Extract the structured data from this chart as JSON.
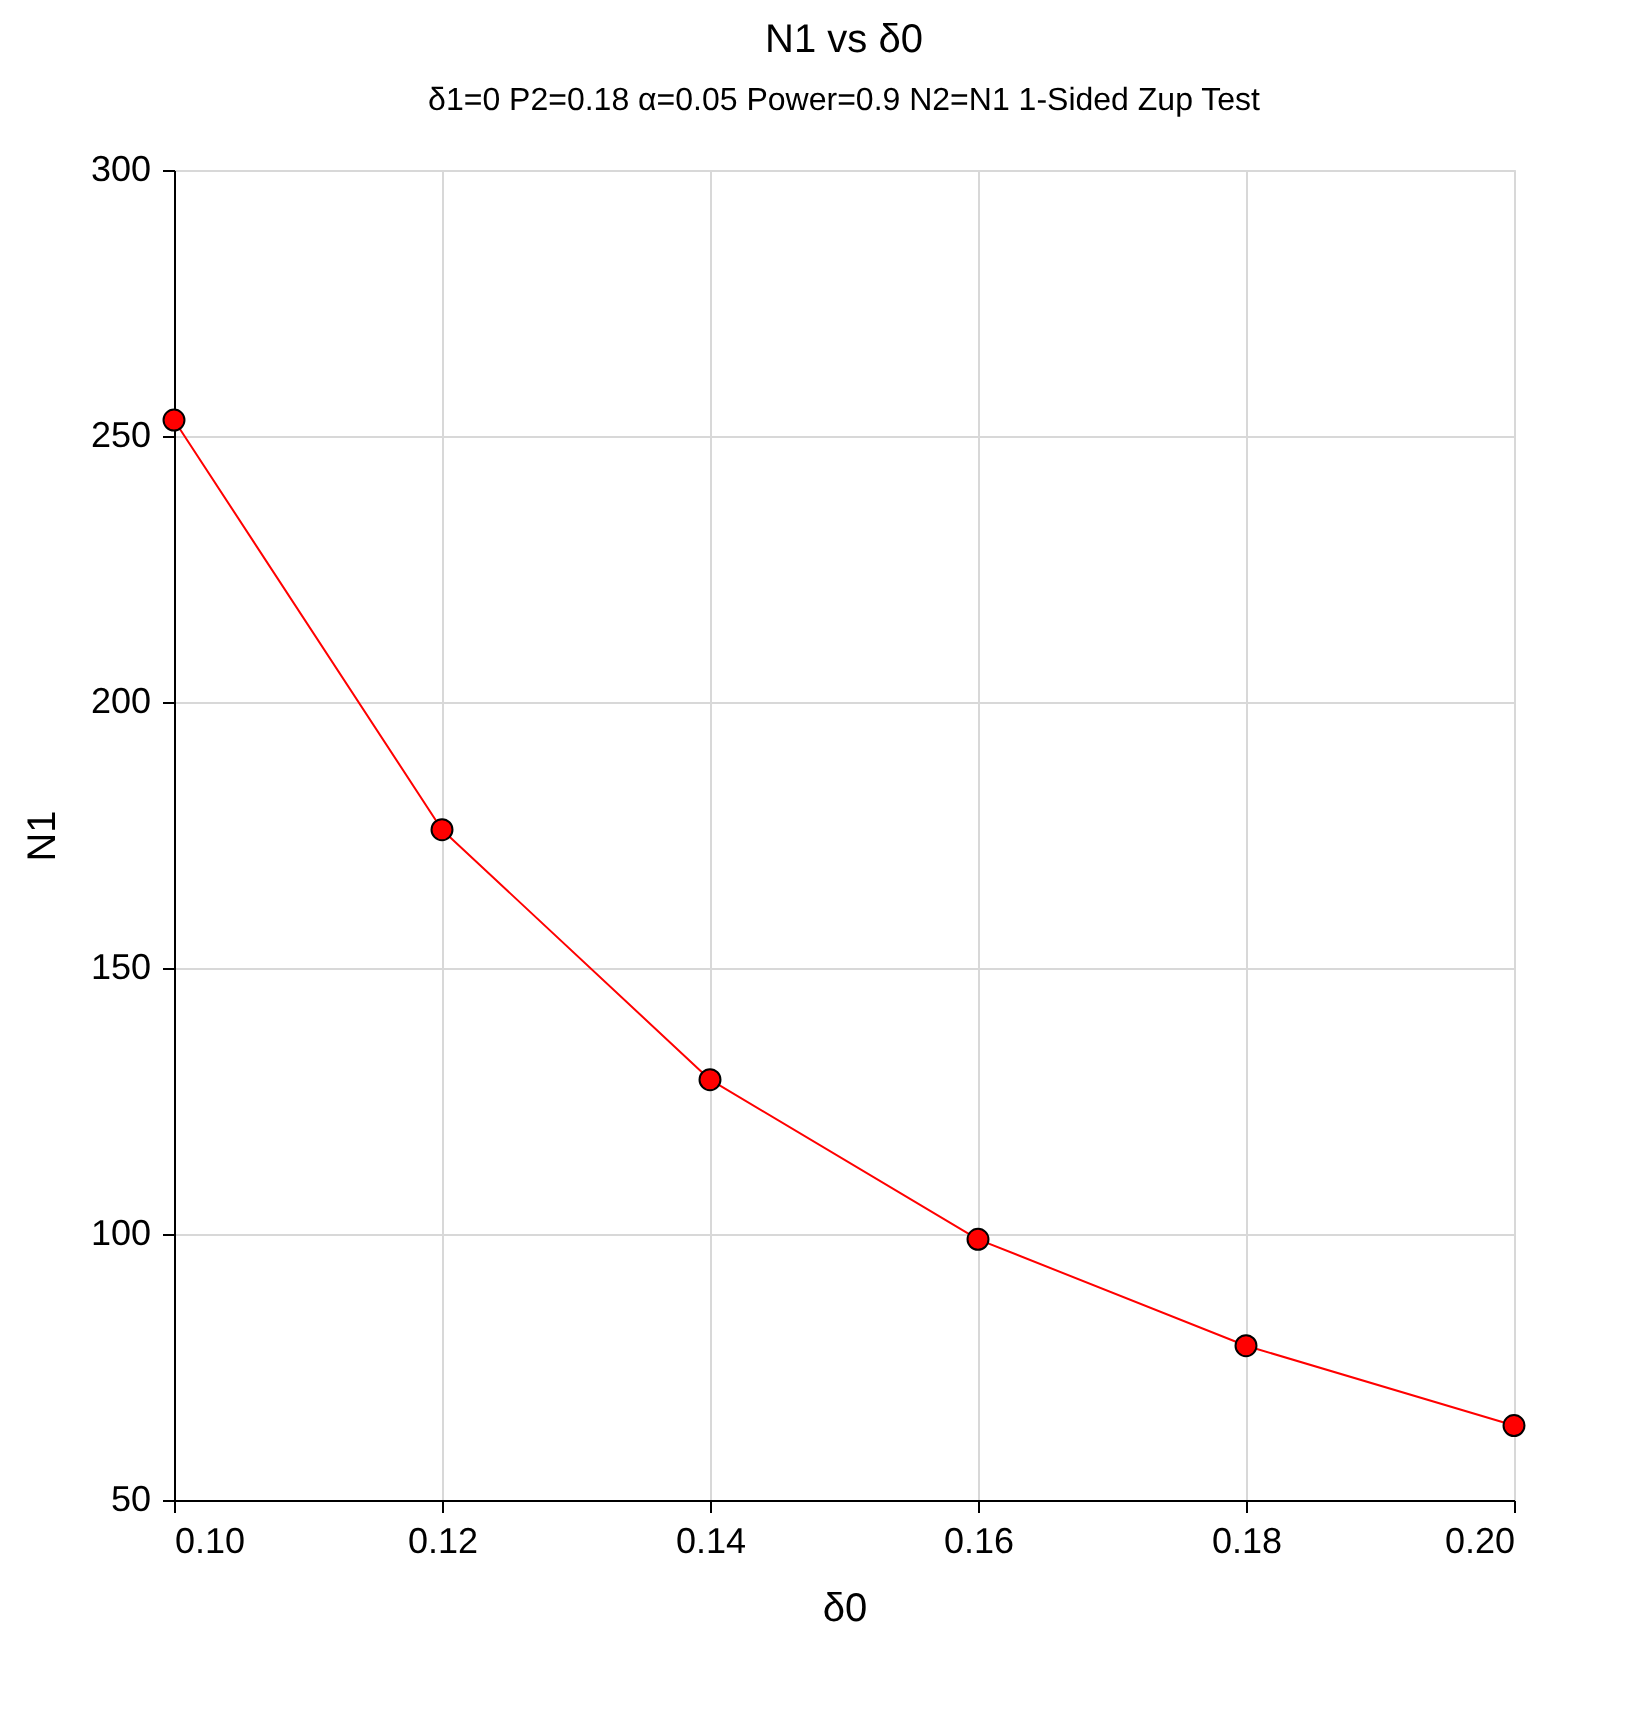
{
  "chart_data": {
    "type": "line",
    "title": "N1 vs δ0",
    "subtitle": "δ1=0 P2=0.18 α=0.05 Power=0.9 N2=N1 1-Sided Zup Test",
    "xlabel": "δ0",
    "ylabel": "N1",
    "x": [
      0.1,
      0.12,
      0.14,
      0.16,
      0.18,
      0.2
    ],
    "series": [
      {
        "color": "#ff0000",
        "values": [
          253,
          176,
          129,
          99,
          79,
          64
        ]
      }
    ],
    "xlim": [
      0.1,
      0.2
    ],
    "xticks": [
      {
        "value": 0.1,
        "label": "0.10"
      },
      {
        "value": 0.12,
        "label": "0.12"
      },
      {
        "value": 0.14,
        "label": "0.14"
      },
      {
        "value": 0.16,
        "label": "0.16"
      },
      {
        "value": 0.18,
        "label": "0.18"
      },
      {
        "value": 0.2,
        "label": "0.20"
      }
    ],
    "ylim": [
      50,
      300
    ],
    "yticks": [
      50,
      100,
      150,
      200,
      250,
      300
    ],
    "grid": true,
    "marker": "circle",
    "line_style": "solid"
  }
}
